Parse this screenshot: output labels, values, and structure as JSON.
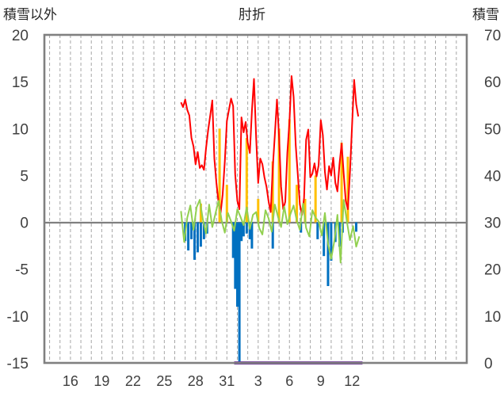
{
  "chart_data": {
    "type": "line",
    "title": "肘折",
    "ylabel_left": "積雪以外",
    "ylabel_right": "積雪",
    "ylim_left": [
      -15,
      20
    ],
    "ylim_right": [
      0,
      70
    ],
    "yticks_left": [
      "20",
      "15",
      "10",
      "5",
      "0",
      "-5",
      "-10",
      "-15"
    ],
    "yticks_right": [
      "70",
      "60",
      "50",
      "40",
      "30",
      "20",
      "10",
      "0"
    ],
    "xlim_day": [
      13.5,
      54
    ],
    "xtick_labels": [
      {
        "day": 16,
        "label": "16"
      },
      {
        "day": 19,
        "label": "19"
      },
      {
        "day": 22,
        "label": "22"
      },
      {
        "day": 25,
        "label": "25"
      },
      {
        "day": 28,
        "label": "28"
      },
      {
        "day": 31,
        "label": "31"
      },
      {
        "day": 34,
        "label": "3"
      },
      {
        "day": 37,
        "label": "6"
      },
      {
        "day": 40,
        "label": "9"
      },
      {
        "day": 43,
        "label": "12"
      }
    ],
    "grid": "vertical dashed, daily",
    "zero_line": true,
    "colors": {
      "red_series": "#ff0000",
      "orange_bars": "#ffc000",
      "blue_bars": "#0070c0",
      "green_series": "#92d050",
      "purple_snow": "#7030a0",
      "zero_line": "#808080",
      "frame": "#808080",
      "grid": "#a6a6a6"
    },
    "series": [
      {
        "color": "red",
        "axis": "left",
        "type": "line",
        "x": [
          26.6,
          26.8,
          27.0,
          27.2,
          27.4,
          27.6,
          27.8,
          28.0,
          28.2,
          28.4,
          28.6,
          28.8,
          29.0,
          29.2,
          29.4,
          29.6,
          29.8,
          30.0,
          30.2,
          30.4,
          30.6,
          30.8,
          31.0,
          31.2,
          31.4,
          31.6,
          31.8,
          32.0,
          32.2,
          32.4,
          32.6,
          32.8,
          33.0,
          33.2,
          33.4,
          33.6,
          33.8,
          34.0,
          34.2,
          34.4,
          34.6,
          34.8,
          35.0,
          35.2,
          35.4,
          35.6,
          35.8,
          36.0,
          36.2,
          36.4,
          36.6,
          36.8,
          37.0,
          37.2,
          37.4,
          37.6,
          37.8,
          38.0,
          38.2,
          38.4,
          38.6,
          38.8,
          39.0,
          39.2,
          39.4,
          39.6,
          39.8,
          40.0,
          40.2,
          40.4,
          40.6,
          40.8,
          41.0,
          41.2,
          41.4,
          41.6,
          41.8,
          42.0,
          42.2,
          42.4,
          42.6,
          42.8,
          43.0,
          43.2,
          43.4,
          43.6
        ],
        "y": [
          12.8,
          12.3,
          13.1,
          12.0,
          11.4,
          9.0,
          8.1,
          6.2,
          7.5,
          5.8,
          6.1,
          5.6,
          7.9,
          9.8,
          11.4,
          13.0,
          6.8,
          4.2,
          2.1,
          1.0,
          3.0,
          6.5,
          10.8,
          12.0,
          13.2,
          12.4,
          5.1,
          2.3,
          1.4,
          11.2,
          9.6,
          10.7,
          8.5,
          7.4,
          11.9,
          15.3,
          9.1,
          4.2,
          6.8,
          6.2,
          4.8,
          3.8,
          2.2,
          1.1,
          5.8,
          9.3,
          13.1,
          9.2,
          3.8,
          1.4,
          2.2,
          7.4,
          10.8,
          15.6,
          13.4,
          8.2,
          5.1,
          1.9,
          0.8,
          2.6,
          8.8,
          9.9,
          4.8,
          5.2,
          6.3,
          4.9,
          6.1,
          10.9,
          9.3,
          5.4,
          3.5,
          6.0,
          5.0,
          6.9,
          4.2,
          3.3,
          6.2,
          8.4,
          5.2,
          2.3,
          1.4,
          5.3,
          10.2,
          15.2,
          12.6,
          11.3
        ]
      },
      {
        "color": "green",
        "axis": "left",
        "type": "line",
        "x": [
          26.6,
          26.9,
          27.2,
          27.5,
          27.8,
          28.1,
          28.4,
          28.7,
          29.0,
          29.3,
          29.6,
          29.9,
          30.2,
          30.5,
          30.8,
          31.1,
          31.4,
          31.7,
          32.0,
          32.3,
          32.6,
          32.9,
          33.2,
          33.5,
          33.8,
          34.1,
          34.4,
          34.7,
          35.0,
          35.3,
          35.6,
          35.9,
          36.2,
          36.5,
          36.8,
          37.1,
          37.4,
          37.7,
          38.0,
          38.3,
          38.6,
          38.9,
          39.2,
          39.5,
          39.8,
          40.1,
          40.4,
          40.7,
          41.0,
          41.3,
          41.6,
          41.9,
          42.2,
          42.5,
          42.8,
          43.1,
          43.4,
          43.7
        ],
        "y": [
          1.2,
          -2.1,
          0.5,
          1.8,
          -0.8,
          1.6,
          2.4,
          0.3,
          -1.2,
          1.9,
          -0.5,
          0.9,
          2.3,
          0.2,
          -1.1,
          1.0,
          0.1,
          -0.9,
          1.4,
          0.6,
          -0.3,
          1.6,
          -0.7,
          0.8,
          1.1,
          -0.6,
          -1.3,
          1.3,
          0.4,
          -1.0,
          1.9,
          0.6,
          -0.5,
          1.7,
          -0.2,
          0.9,
          1.8,
          0.2,
          -0.8,
          2.0,
          -0.6,
          -1.5,
          1.3,
          0.5,
          0.1,
          -1.4,
          1.0,
          -2.3,
          -3.9,
          -2.0,
          0.8,
          -4.3,
          2.4,
          0.1,
          -1.9,
          -0.4,
          -2.6,
          -1.5
        ]
      },
      {
        "color": "orange",
        "axis": "left",
        "type": "bar",
        "x": [
          28.5,
          30.3,
          31.0,
          32.9,
          34.0,
          35.4,
          36.0,
          37.0,
          37.7,
          38.5,
          39.5,
          42.0,
          42.6
        ],
        "y": [
          2.0,
          10.0,
          4.0,
          9.0,
          2.5,
          6.5,
          10.0,
          11.0,
          4.0,
          2.5,
          5.0,
          8.5,
          7.0
        ]
      },
      {
        "color": "blue",
        "axis": "left",
        "type": "bar",
        "x": [
          27.0,
          27.3,
          27.6,
          27.9,
          28.2,
          28.5,
          28.8,
          29.1,
          31.6,
          31.8,
          32.0,
          32.2,
          32.4,
          32.6,
          32.9,
          33.2,
          33.4,
          35.4,
          38.1,
          39.7,
          40.3,
          40.7,
          41.0,
          41.4,
          41.8,
          42.1,
          43.4
        ],
        "y": [
          -2.0,
          -3.0,
          -1.8,
          -4.0,
          -3.2,
          -2.6,
          -1.8,
          -1.2,
          -3.8,
          -7.1,
          -9.0,
          -15.0,
          -2.0,
          -1.5,
          -1.2,
          -1.8,
          -2.8,
          -2.8,
          -1.1,
          -1.8,
          -3.6,
          -6.8,
          -4.1,
          -2.1,
          -2.6,
          -1.1,
          -1.0
        ]
      },
      {
        "color": "purple",
        "axis": "right",
        "type": "line",
        "x": [
          31.7,
          44.0
        ],
        "y": [
          0,
          0
        ]
      }
    ]
  }
}
